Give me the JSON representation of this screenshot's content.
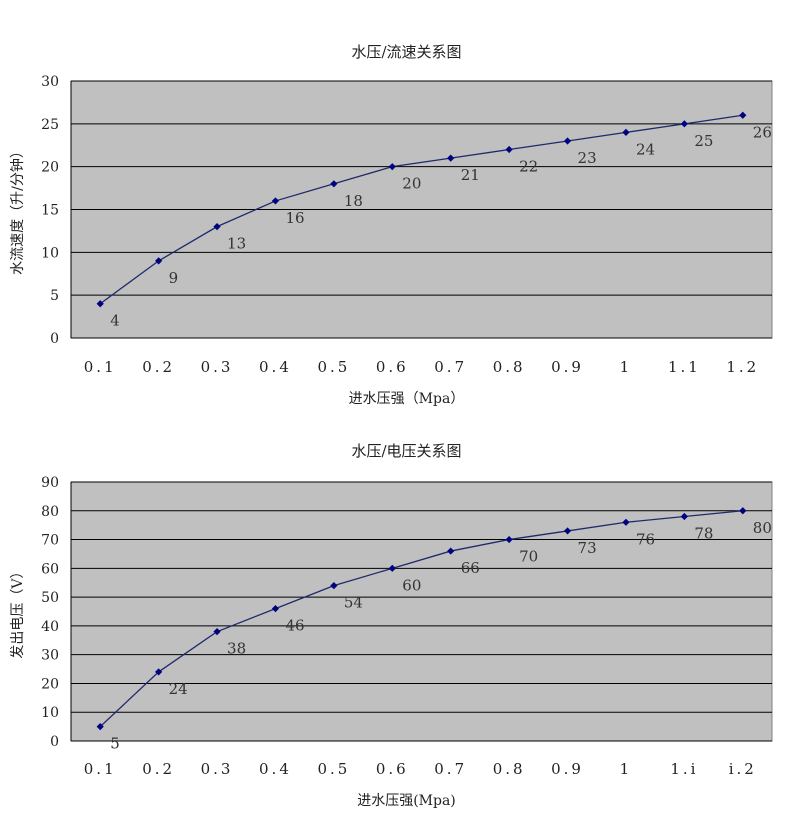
{
  "chart_data": [
    {
      "type": "line",
      "title": "水压/流速关系图",
      "xlabel": "进水压强（Mpa）",
      "ylabel": "水流速度（升/分钟）",
      "categories": [
        "0.1",
        "0.2",
        "0.3",
        "0.4",
        "0.5",
        "0.6",
        "0.7",
        "0.8",
        "0.9",
        "1",
        "1.1",
        "1.2"
      ],
      "series": [
        {
          "values": [
            4,
            9,
            13,
            16,
            18,
            20,
            21,
            22,
            23,
            24,
            25,
            26
          ]
        }
      ],
      "data_labels": [
        "4",
        "9",
        "13",
        "16",
        "18",
        "20",
        "21",
        "22",
        "23",
        "24",
        "25",
        "26"
      ],
      "ylim": [
        0,
        30
      ],
      "yticks": [
        "0",
        "5",
        "10",
        "15",
        "20",
        "25",
        "30"
      ],
      "grid": true,
      "colors": {
        "plot_bg": "#c0c0c0",
        "line": "#1f2a6b",
        "marker": "#000080",
        "grid": "#000000"
      }
    },
    {
      "type": "line",
      "title": "水压/电压关系图",
      "xlabel": "进水压强(Mpa)",
      "ylabel": "发出电压（V）",
      "categories": [
        "0.1",
        "0.2",
        "0.3",
        "0.4",
        "0.5",
        "0.6",
        "0.7",
        "0.8",
        "0.9",
        "1",
        "1.i",
        "i.2"
      ],
      "series": [
        {
          "values": [
            5,
            24,
            38,
            46,
            54,
            60,
            66,
            70,
            73,
            76,
            78,
            80
          ]
        }
      ],
      "data_labels": [
        "5",
        "24",
        "38",
        "46",
        "54",
        "60",
        "66",
        "70",
        "73",
        "76",
        "78",
        "80"
      ],
      "ylim": [
        0,
        90
      ],
      "yticks": [
        "0",
        "10",
        "20",
        "30",
        "40",
        "50",
        "60",
        "70",
        "80",
        "90"
      ],
      "grid": true,
      "colors": {
        "plot_bg": "#c0c0c0",
        "line": "#1f2a6b",
        "marker": "#000080",
        "grid": "#000000"
      }
    }
  ]
}
